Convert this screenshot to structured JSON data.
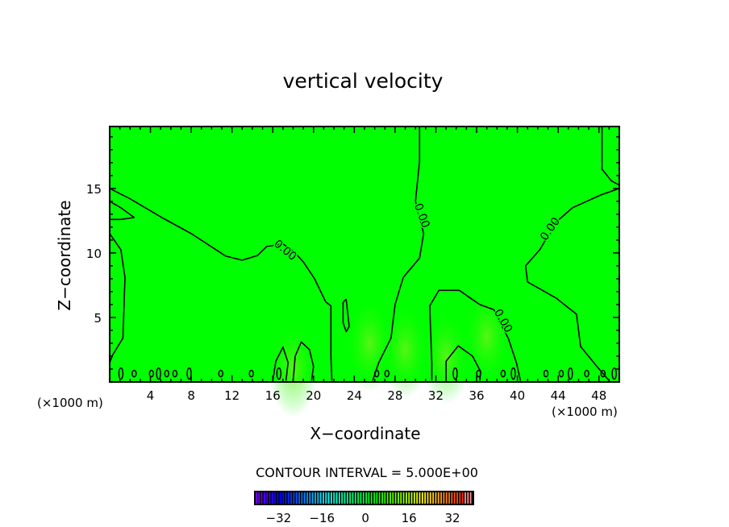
{
  "chart_data": {
    "type": "contour",
    "title": "vertical velocity",
    "xlabel": "X−coordinate",
    "ylabel": "Z−coordinate",
    "x_unit_label": "(×1000 m)",
    "x_unit_label_right": "(×1000 m)",
    "xlim": [
      0,
      50
    ],
    "ylim": [
      0,
      19.8
    ],
    "xticks": [
      4,
      8,
      12,
      16,
      20,
      24,
      28,
      32,
      36,
      40,
      44,
      48
    ],
    "xtick_labels": [
      "4",
      "8",
      "12",
      "16",
      "20",
      "24",
      "28",
      "32",
      "36",
      "40",
      "44",
      "48"
    ],
    "yticks": [
      5,
      10,
      15
    ],
    "ytick_labels": [
      "5",
      "10",
      "15"
    ],
    "field_color": "#00ff00",
    "contour_interval_label": "CONTOUR INTERVAL = 5.000E+00",
    "contour_level_label": "0.00",
    "contours": [
      [
        [
          0,
          15
        ],
        [
          2,
          14.2
        ],
        [
          5.1,
          12.75
        ],
        [
          8,
          11.5
        ],
        [
          11.4,
          9.75
        ],
        [
          13,
          9.44
        ],
        [
          14.5,
          9.8
        ],
        [
          15.4,
          10.5
        ],
        [
          17,
          10.7
        ],
        [
          18.2,
          10
        ],
        [
          19,
          9.3
        ],
        [
          20.1,
          8
        ],
        [
          21.2,
          6.2
        ],
        [
          21.7,
          5.9
        ],
        [
          21.7,
          2.1
        ],
        [
          21.8,
          0.1
        ]
      ],
      [
        [
          0,
          14
        ],
        [
          1.1,
          13.5
        ],
        [
          2.4,
          12.75
        ],
        [
          1.1,
          12.6
        ],
        [
          0,
          12.6
        ]
      ],
      [
        [
          0,
          11.5
        ],
        [
          1.1,
          10.25
        ],
        [
          1.5,
          8.1
        ],
        [
          1.3,
          3.4
        ],
        [
          0.3,
          2.1
        ],
        [
          0,
          1.5
        ]
      ],
      [
        [
          30.4,
          19.8
        ],
        [
          30.4,
          17.1
        ],
        [
          30,
          14
        ],
        [
          30.4,
          12.75
        ],
        [
          30.8,
          11.5
        ],
        [
          30.4,
          9.6
        ],
        [
          28.8,
          8.1
        ],
        [
          28,
          6
        ],
        [
          27.6,
          3.4
        ],
        [
          26.4,
          1.5
        ],
        [
          25.8,
          0.1
        ]
      ],
      [
        [
          31.6,
          0.1
        ],
        [
          31.6,
          1.5
        ],
        [
          31.4,
          5.9
        ],
        [
          32.3,
          7.1
        ],
        [
          34.3,
          7.1
        ],
        [
          36.3,
          6
        ],
        [
          37.7,
          5.6
        ],
        [
          38.3,
          4.6
        ],
        [
          39.1,
          3.4
        ],
        [
          39.9,
          1.5
        ],
        [
          40.3,
          0.1
        ]
      ],
      [
        [
          50,
          15
        ],
        [
          48.2,
          14.5
        ],
        [
          45.4,
          13.5
        ],
        [
          43.8,
          12.4
        ],
        [
          42.2,
          10.25
        ],
        [
          40.8,
          9
        ],
        [
          41,
          7.75
        ],
        [
          43.8,
          6.5
        ],
        [
          45.8,
          5.25
        ],
        [
          46.2,
          2.75
        ],
        [
          47.8,
          1.2
        ],
        [
          49,
          0.1
        ]
      ],
      [
        [
          48.3,
          19.8
        ],
        [
          48.3,
          16.5
        ],
        [
          49.2,
          15.6
        ],
        [
          50,
          15.25
        ]
      ],
      [
        [
          22.9,
          6.2
        ],
        [
          23.2,
          6.4
        ],
        [
          23.5,
          4.3
        ],
        [
          23.2,
          3.9
        ],
        [
          22.9,
          4.6
        ],
        [
          22.9,
          6.2
        ]
      ],
      [
        [
          16,
          0.1
        ],
        [
          16.3,
          1.6
        ],
        [
          17,
          2.7
        ],
        [
          17.5,
          1.5
        ],
        [
          17.3,
          0.1
        ]
      ],
      [
        [
          18,
          0.1
        ],
        [
          18.2,
          2
        ],
        [
          18.8,
          3.1
        ],
        [
          19.6,
          2.5
        ],
        [
          20,
          1.2
        ],
        [
          19.8,
          0.1
        ]
      ],
      [
        [
          33,
          0.1
        ],
        [
          33,
          1.6
        ],
        [
          34.2,
          2.8
        ],
        [
          35.6,
          2
        ],
        [
          36.4,
          0.8
        ],
        [
          36.3,
          0.1
        ]
      ]
    ],
    "small_cells_x": [
      1.1,
      2.4,
      4.1,
      4.8,
      5.6,
      6.4,
      7.8,
      10.9,
      13.9,
      16.6,
      26.2,
      27.2,
      33.9,
      36.2,
      38.6,
      39.6,
      42.8,
      44.3,
      45.2,
      46.8,
      48.4,
      49.5
    ],
    "contour_labels": [
      {
        "x": 17,
        "y": 10.0,
        "angle": 40
      },
      {
        "x": 30.3,
        "y": 12.8,
        "angle": 70
      },
      {
        "x": 38.3,
        "y": 4.6,
        "angle": 60
      },
      {
        "x": 43.5,
        "y": 11.7,
        "angle": -55
      }
    ],
    "colorbar": {
      "range": [
        -41,
        40
      ],
      "ticks": [
        -32,
        -16,
        0,
        16,
        32
      ],
      "tick_labels": [
        "−32",
        "−16",
        "0",
        "16",
        "32"
      ]
    }
  }
}
